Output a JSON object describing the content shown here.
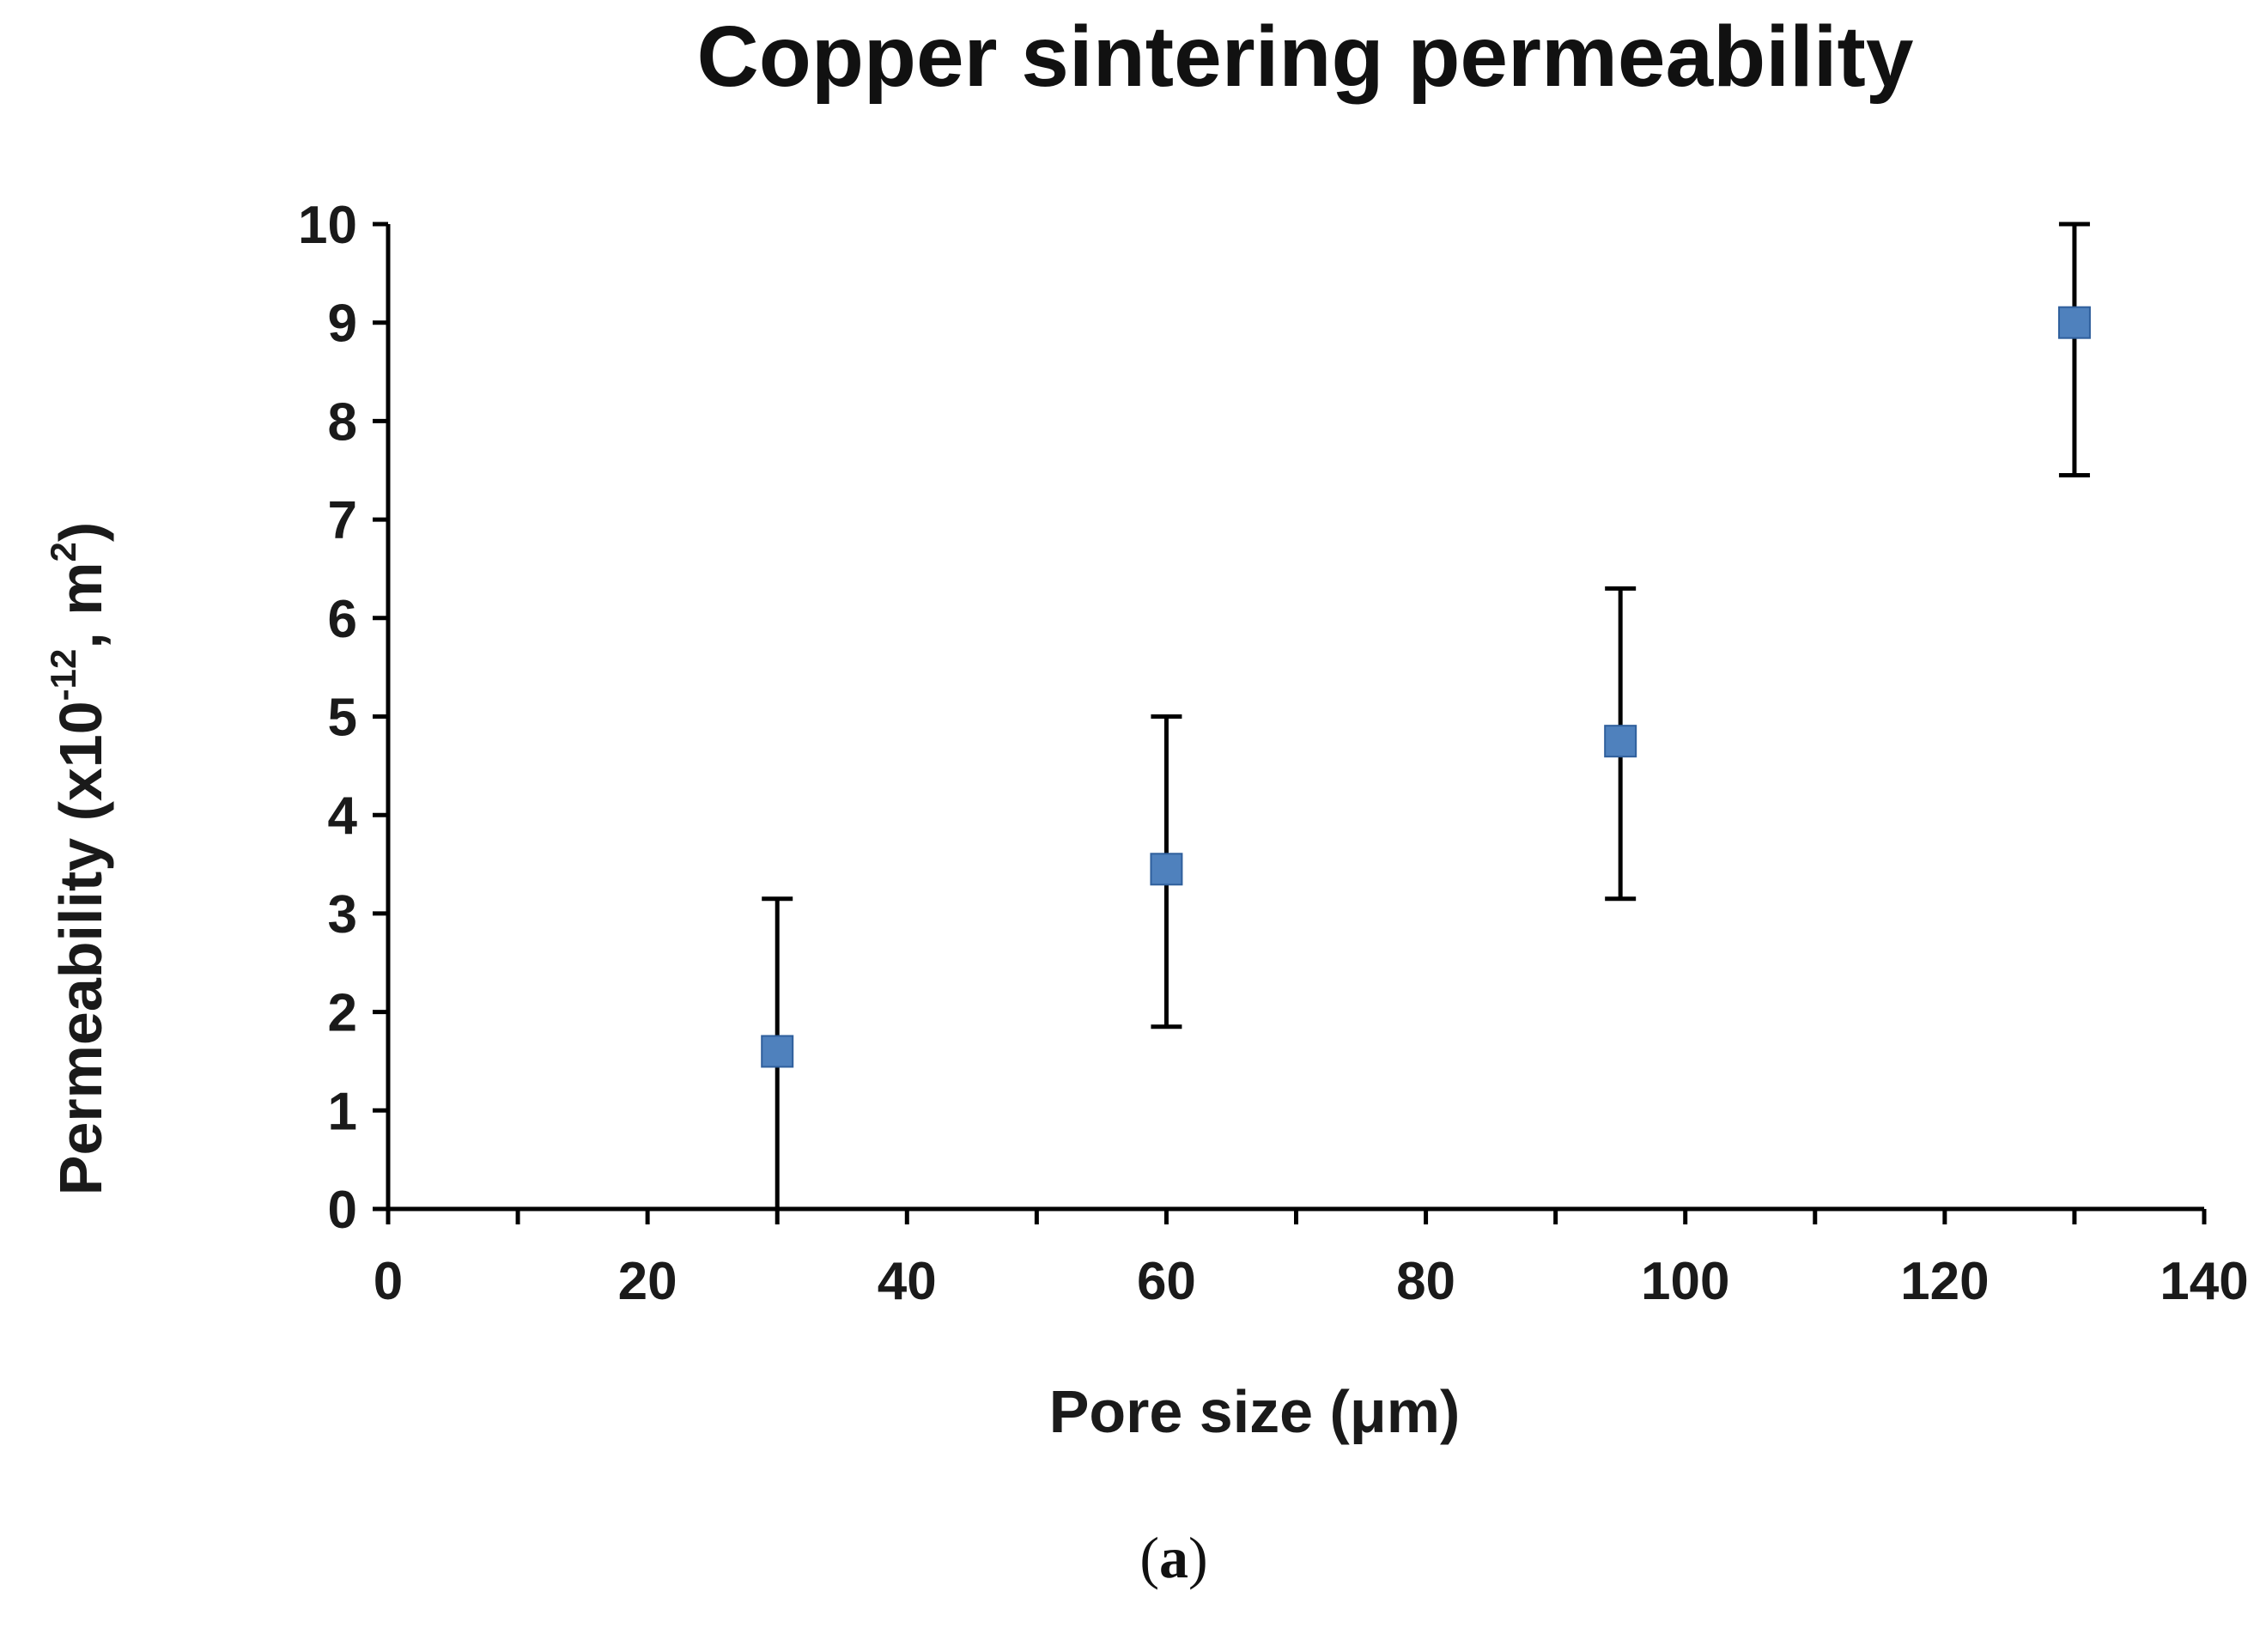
{
  "chart_data": {
    "type": "scatter",
    "title": "Copper sintering permeability",
    "xlabel": "Pore size (μm)",
    "ylabel": {
      "main": "Permeability  (x10",
      "sup1": "-12",
      "mid": ", m",
      "sup2": "2",
      "end": ")"
    },
    "xlim": [
      0,
      140
    ],
    "ylim": [
      0,
      10
    ],
    "x_major_ticks": [
      0,
      20,
      40,
      60,
      80,
      100,
      120,
      140
    ],
    "x_tick_labels": [
      "0",
      "20",
      "40",
      "60",
      "80",
      "100",
      "120",
      "140"
    ],
    "x_minor_tick_step": 10,
    "y_ticks": [
      0,
      1,
      2,
      3,
      4,
      5,
      6,
      7,
      8,
      9,
      10
    ],
    "y_tick_labels": [
      "0",
      "1",
      "2",
      "3",
      "4",
      "5",
      "6",
      "7",
      "8",
      "9",
      "10"
    ],
    "grid": false,
    "series": [
      {
        "name": "Copper sintering",
        "marker": "square",
        "color": "#4f81bd",
        "points": [
          {
            "x": 30,
            "y": 1.6,
            "err_low": 0,
            "err_high": 3.15
          },
          {
            "x": 60,
            "y": 3.45,
            "err_low": 1.85,
            "err_high": 5.0
          },
          {
            "x": 95,
            "y": 4.75,
            "err_low": 3.15,
            "err_high": 6.3
          },
          {
            "x": 130,
            "y": 9.0,
            "err_low": 7.45,
            "err_high": 10.0
          }
        ]
      }
    ]
  },
  "panel_label": {
    "open": "(",
    "letter": "a",
    "close": ")"
  }
}
